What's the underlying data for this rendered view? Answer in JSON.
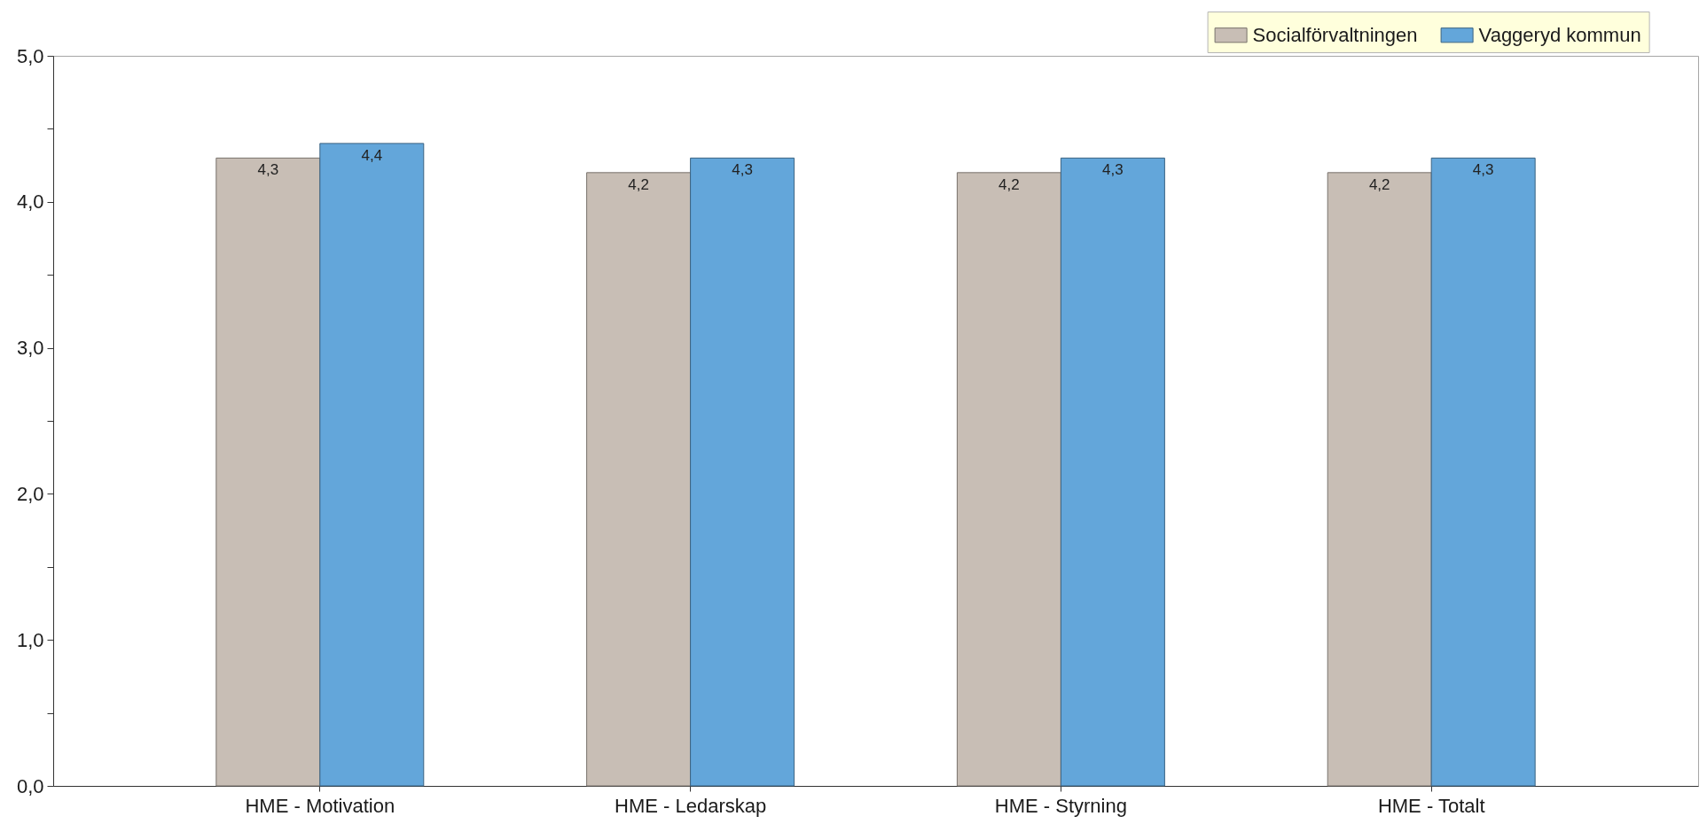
{
  "chart_data": {
    "type": "bar",
    "categories": [
      "HME - Motivation",
      "HME - Ledarskap",
      "HME - Styrning",
      "HME - Totalt"
    ],
    "series": [
      {
        "name": "Socialförvaltningen",
        "color": "#c8beb5",
        "values": [
          4.3,
          4.2,
          4.2,
          4.2
        ],
        "value_labels": [
          "4,3",
          "4,2",
          "4,2",
          "4,2"
        ]
      },
      {
        "name": "Vaggeryd kommun",
        "color": "#63a6da",
        "values": [
          4.4,
          4.3,
          4.3,
          4.3
        ],
        "value_labels": [
          "4,4",
          "4,3",
          "4,3",
          "4,3"
        ]
      }
    ],
    "ylim": [
      0,
      5
    ],
    "yticks": [
      {
        "value": 0,
        "label": "0,0"
      },
      {
        "value": 0.5,
        "label": null
      },
      {
        "value": 1,
        "label": "1,0"
      },
      {
        "value": 1.5,
        "label": null
      },
      {
        "value": 2,
        "label": "2,0"
      },
      {
        "value": 2.5,
        "label": null
      },
      {
        "value": 3,
        "label": "3,0"
      },
      {
        "value": 3.5,
        "label": null
      },
      {
        "value": 4,
        "label": "4,0"
      },
      {
        "value": 4.5,
        "label": null
      },
      {
        "value": 5,
        "label": "5,0"
      }
    ],
    "grid": false,
    "legend": "top right"
  }
}
